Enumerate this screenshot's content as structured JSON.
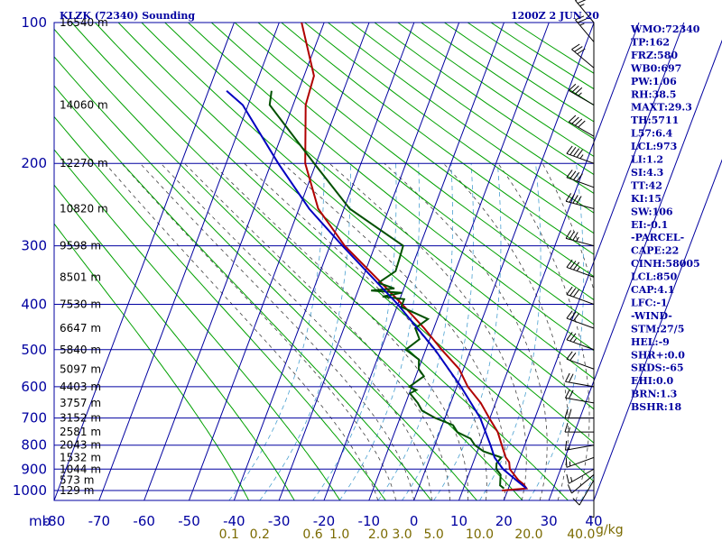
{
  "header": {
    "title": "KLZK (72340) Sounding",
    "time": "1200Z  2 JUN 20"
  },
  "colors": {
    "grid": "#0000a0",
    "dry_adiabat": "#00a000",
    "moist_adiabat": "#404040",
    "mixing_ratio": "#4aa0d0",
    "temperature": "#b00000",
    "dewpoint": "#005000",
    "parcel": "#0000c0",
    "text": "#0000a0",
    "mixing_ratio_labels": "#7a6a00"
  },
  "chart_data": {
    "type": "skew-t",
    "pressure_unit_label": "mb",
    "pressure_levels": [
      100,
      200,
      300,
      400,
      500,
      600,
      700,
      800,
      900,
      1000
    ],
    "temperature_ticks": [
      -80,
      -70,
      -60,
      -50,
      -40,
      -30,
      -20,
      -10,
      0,
      10,
      20,
      30,
      40
    ],
    "mixing_ratio_ticks": [
      "0.1",
      "0.2",
      "0.6",
      "1.0",
      "2.0",
      "3.0",
      "5.0",
      "10.0",
      "20.0",
      "40.0"
    ],
    "mixing_ratio_unit": "g/kg",
    "height_labels": [
      {
        "p": 100,
        "text": "16540 m"
      },
      {
        "p": 150,
        "text": "14060 m"
      },
      {
        "p": 200,
        "text": "12270 m"
      },
      {
        "p": 250,
        "text": "10820 m"
      },
      {
        "p": 300,
        "text": "9598 m"
      },
      {
        "p": 350,
        "text": "8501 m"
      },
      {
        "p": 400,
        "text": "7530 m"
      },
      {
        "p": 450,
        "text": "6647 m"
      },
      {
        "p": 500,
        "text": "5840 m"
      },
      {
        "p": 550,
        "text": "5097 m"
      },
      {
        "p": 600,
        "text": "4403 m"
      },
      {
        "p": 650,
        "text": "3757 m"
      },
      {
        "p": 700,
        "text": "3152 m"
      },
      {
        "p": 750,
        "text": "2581 m"
      },
      {
        "p": 800,
        "text": "2043 m"
      },
      {
        "p": 850,
        "text": "1532 m"
      },
      {
        "p": 900,
        "text": "1044 m"
      },
      {
        "p": 950,
        "text": "573 m"
      },
      {
        "p": 1000,
        "text": "129 m"
      }
    ],
    "series": [
      {
        "name": "temperature",
        "points": [
          [
            1000,
            17.5
          ],
          [
            990,
            22.5
          ],
          [
            970,
            21
          ],
          [
            950,
            19
          ],
          [
            925,
            17
          ],
          [
            900,
            15
          ],
          [
            870,
            13.6
          ],
          [
            850,
            12
          ],
          [
            800,
            9
          ],
          [
            750,
            6
          ],
          [
            700,
            2
          ],
          [
            650,
            -2
          ],
          [
            600,
            -7
          ],
          [
            550,
            -11
          ],
          [
            500,
            -17
          ],
          [
            450,
            -23
          ],
          [
            400,
            -30
          ],
          [
            350,
            -38
          ],
          [
            300,
            -47
          ],
          [
            250,
            -55
          ],
          [
            200,
            -60
          ],
          [
            150,
            -62
          ],
          [
            130,
            -61
          ],
          [
            100,
            -65
          ]
        ]
      },
      {
        "name": "dewpoint",
        "points": [
          [
            990,
            17.5
          ],
          [
            975,
            16
          ],
          [
            950,
            15
          ],
          [
            925,
            14
          ],
          [
            900,
            12
          ],
          [
            875,
            11
          ],
          [
            850,
            11
          ],
          [
            825,
            6
          ],
          [
            800,
            3
          ],
          [
            775,
            1
          ],
          [
            750,
            -3
          ],
          [
            725,
            -5
          ],
          [
            700,
            -10
          ],
          [
            675,
            -14
          ],
          [
            650,
            -16
          ],
          [
            620,
            -19
          ],
          [
            610,
            -18
          ],
          [
            600,
            -20
          ],
          [
            570,
            -18
          ],
          [
            550,
            -20
          ],
          [
            525,
            -21
          ],
          [
            500,
            -25
          ],
          [
            475,
            -23
          ],
          [
            450,
            -25
          ],
          [
            430,
            -23
          ],
          [
            405,
            -30
          ],
          [
            390,
            -30
          ],
          [
            385,
            -35
          ],
          [
            378,
            -31
          ],
          [
            374,
            -38
          ],
          [
            370,
            -33
          ],
          [
            360,
            -37
          ],
          [
            340,
            -34
          ],
          [
            320,
            -34
          ],
          [
            300,
            -34
          ],
          [
            250,
            -48
          ],
          [
            200,
            -58
          ],
          [
            150,
            -70
          ],
          [
            140,
            -70
          ]
        ]
      },
      {
        "name": "parcel",
        "points": [
          [
            990,
            22.5
          ],
          [
            950,
            18.5
          ],
          [
            900,
            13.5
          ],
          [
            850,
            9.5
          ],
          [
            800,
            6.5
          ],
          [
            700,
            0
          ],
          [
            600,
            -8.5
          ],
          [
            500,
            -18.5
          ],
          [
            400,
            -31
          ],
          [
            300,
            -47.5
          ],
          [
            250,
            -57
          ],
          [
            200,
            -66
          ],
          [
            150,
            -76
          ],
          [
            140,
            -80
          ]
        ]
      }
    ],
    "wind_barbs": [
      {
        "p": 990,
        "dir": 180,
        "kt": 5
      },
      {
        "p": 950,
        "dir": 210,
        "kt": 10
      },
      {
        "p": 925,
        "dir": 230,
        "kt": 10
      },
      {
        "p": 900,
        "dir": 240,
        "kt": 15
      },
      {
        "p": 850,
        "dir": 250,
        "kt": 15
      },
      {
        "p": 800,
        "dir": 260,
        "kt": 15
      },
      {
        "p": 750,
        "dir": 270,
        "kt": 15
      },
      {
        "p": 700,
        "dir": 270,
        "kt": 20
      },
      {
        "p": 650,
        "dir": 280,
        "kt": 20
      },
      {
        "p": 600,
        "dir": 280,
        "kt": 20
      },
      {
        "p": 550,
        "dir": 290,
        "kt": 20
      },
      {
        "p": 500,
        "dir": 290,
        "kt": 25
      },
      {
        "p": 450,
        "dir": 290,
        "kt": 30
      },
      {
        "p": 400,
        "dir": 290,
        "kt": 30
      },
      {
        "p": 350,
        "dir": 290,
        "kt": 35
      },
      {
        "p": 300,
        "dir": 285,
        "kt": 35
      },
      {
        "p": 250,
        "dir": 285,
        "kt": 40
      },
      {
        "p": 225,
        "dir": 290,
        "kt": 40
      },
      {
        "p": 200,
        "dir": 290,
        "kt": 45
      },
      {
        "p": 175,
        "dir": 300,
        "kt": 40
      },
      {
        "p": 150,
        "dir": 300,
        "kt": 35
      },
      {
        "p": 125,
        "dir": 310,
        "kt": 30
      },
      {
        "p": 110,
        "dir": 320,
        "kt": 25
      },
      {
        "p": 100,
        "dir": 320,
        "kt": 25
      }
    ]
  },
  "indices": [
    "WMO:72340",
    "TP:162",
    "FRZ:580",
    "WB0:697",
    "PW:1.06",
    "RH:38.5",
    "MAXT:29.3",
    "TH:5711",
    "L57:6.4",
    "LCL:973",
    "LI:1.2",
    "SI:4.3",
    "TT:42",
    "KI:15",
    "SW:106",
    "EI:-0.1",
    "-PARCEL-",
    "CAPE:22",
    "CINH:58005",
    "LCL:850",
    "CAP:4.1",
    "LFC:-1",
    "-WIND-",
    "STM:27/5",
    "HEL:-9",
    "SHR+:0.0",
    "SRDS:-65",
    "EHI:0.0",
    "BRN:1.3",
    "BSHR:18"
  ]
}
